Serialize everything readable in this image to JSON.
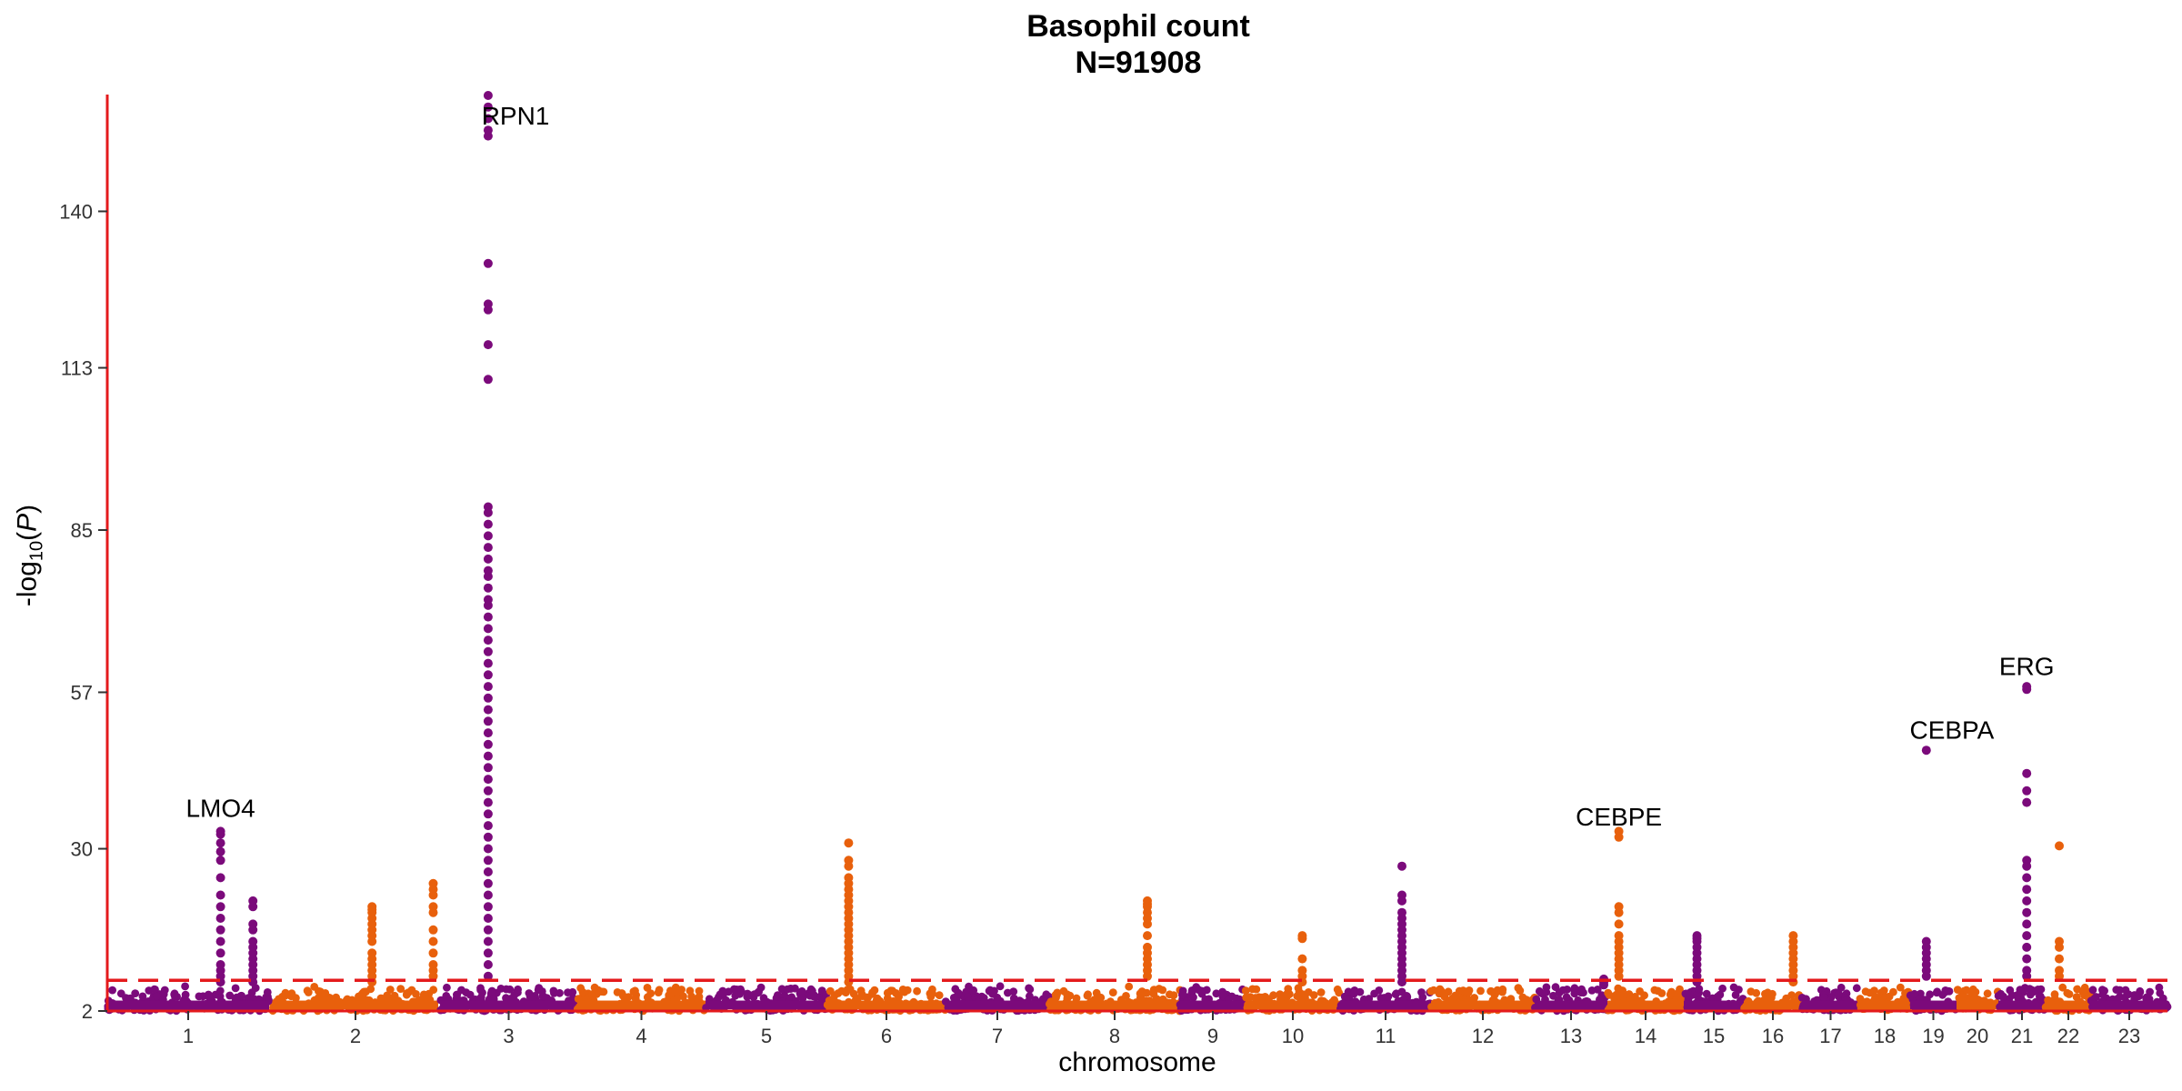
{
  "chart_data": {
    "type": "scatter",
    "title": "Basophil count",
    "subtitle": "N=91908",
    "xlabel": "chromosome",
    "ylabel_prefix": "-log",
    "ylabel_sub": "10",
    "ylabel_var": "P",
    "ylim": [
      2,
      160
    ],
    "y_ticks": [
      2,
      30,
      57,
      85,
      113,
      140
    ],
    "x_ticks": [
      "1",
      "2",
      "3",
      "4",
      "5",
      "6",
      "7",
      "8",
      "9",
      "10",
      "11",
      "12",
      "13",
      "14",
      "15",
      "16",
      "17",
      "18",
      "19",
      "20",
      "21",
      "22",
      "23"
    ],
    "significance_threshold": 7.3,
    "colors": {
      "odd": "#7B0A7B",
      "even": "#E8600C",
      "axis": "#E41A1C",
      "threshold": "#E41A1C",
      "text": "#333333"
    },
    "peaks": [
      {
        "chr": "1",
        "pos": 0.7,
        "values": [
          33,
          32.5,
          31,
          29.5,
          28,
          25,
          22,
          20,
          18,
          16,
          14,
          12,
          10,
          9,
          8,
          7
        ]
      },
      {
        "chr": "1",
        "pos": 0.9,
        "values": [
          21,
          20,
          17,
          16,
          14,
          13,
          12,
          11,
          10,
          9,
          8,
          7
        ]
      },
      {
        "chr": "2",
        "pos": 0.6,
        "values": [
          20,
          19.5,
          19,
          18,
          17,
          16,
          15,
          14,
          12,
          11,
          10,
          9,
          8,
          7
        ]
      },
      {
        "chr": "2",
        "pos": 0.97,
        "values": [
          24,
          23,
          22,
          20,
          19,
          16,
          14,
          12,
          10,
          9,
          8
        ]
      },
      {
        "chr": "3",
        "pos": 0.35,
        "values": [
          160,
          158,
          156,
          154,
          153,
          131,
          124,
          123,
          117,
          111,
          89,
          88,
          86,
          84,
          82,
          80,
          78,
          77,
          75,
          73,
          72,
          70,
          68,
          66,
          64,
          62,
          60,
          58,
          56,
          54,
          52,
          50,
          48,
          46,
          44,
          42,
          40,
          38,
          36,
          34,
          32,
          30,
          28,
          26,
          24,
          22,
          20,
          18,
          16,
          14,
          12,
          10,
          8
        ]
      },
      {
        "chr": "6",
        "pos": 0.18,
        "values": [
          31,
          28,
          27,
          25,
          24,
          23,
          22,
          21,
          20,
          19,
          18,
          17,
          16,
          15,
          14,
          13,
          12,
          11,
          10,
          9,
          8,
          7
        ]
      },
      {
        "chr": "8",
        "pos": 0.75,
        "values": [
          21,
          20.5,
          20,
          19,
          18,
          17,
          15,
          13,
          12,
          11,
          10,
          9,
          8
        ]
      },
      {
        "chr": "10",
        "pos": 0.6,
        "values": [
          15,
          14.5,
          11,
          9,
          8,
          7
        ]
      },
      {
        "chr": "11",
        "pos": 0.68,
        "values": [
          27,
          22,
          21,
          19,
          18,
          17,
          16,
          15,
          14,
          13,
          12,
          11,
          10,
          9,
          8,
          7
        ]
      },
      {
        "chr": "13",
        "pos": 0.95,
        "values": [
          7.5,
          7,
          6.5
        ]
      },
      {
        "chr": "14",
        "pos": 0.15,
        "values": [
          33,
          32,
          20,
          19,
          17,
          15,
          14,
          13,
          12,
          11,
          10,
          9,
          8
        ]
      },
      {
        "chr": "15",
        "pos": 0.22,
        "values": [
          15,
          14.5,
          14,
          13,
          12,
          11,
          10,
          9,
          8,
          7
        ]
      },
      {
        "chr": "16",
        "pos": 0.85,
        "values": [
          15,
          14,
          13,
          12,
          11,
          10,
          9,
          8,
          7
        ]
      },
      {
        "chr": "19",
        "pos": 0.35,
        "values": [
          47,
          14,
          13,
          12,
          11,
          10,
          9,
          8
        ]
      },
      {
        "chr": "21",
        "pos": 0.6,
        "values": [
          58,
          57.5,
          43,
          40,
          38,
          28,
          27,
          25,
          23,
          21,
          19,
          17,
          15,
          13,
          11,
          9,
          8
        ]
      },
      {
        "chr": "22",
        "pos": 0.3,
        "values": [
          30.5,
          14,
          13,
          11,
          9,
          8
        ]
      }
    ],
    "annotations": [
      {
        "label": "LMO4",
        "chr": "1",
        "pos": 0.7,
        "y": 35.5
      },
      {
        "label": "RPN1",
        "chr": "3",
        "pos": 0.55,
        "y": 155
      },
      {
        "label": "CEBPE",
        "chr": "14",
        "pos": 0.15,
        "y": 34
      },
      {
        "label": "CEBPA",
        "chr": "19",
        "pos": 0.9,
        "y": 49
      },
      {
        "label": "ERG",
        "chr": "21",
        "pos": 0.6,
        "y": 60
      }
    ]
  }
}
